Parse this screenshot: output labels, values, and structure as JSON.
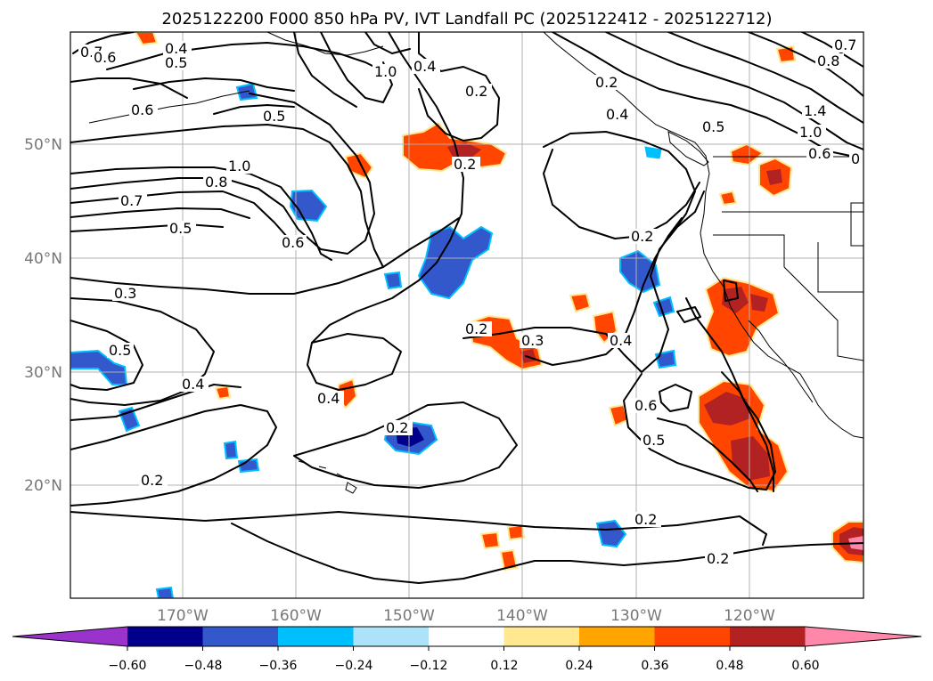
{
  "title": "2025122200 F000 850 hPa PV, IVT Landfall PC (2025122412 - 2025122712)",
  "lon_ticks": [
    "170°W",
    "160°W",
    "150°W",
    "140°W",
    "130°W",
    "120°W"
  ],
  "lat_ticks": [
    "50°N",
    "40°N",
    "30°N",
    "20°N"
  ],
  "colorbar": {
    "ticks": [
      "−0.60",
      "−0.48",
      "−0.36",
      "−0.24",
      "−0.12",
      "0.12",
      "0.24",
      "0.36",
      "0.48",
      "0.60"
    ],
    "colors": [
      "#9933cc",
      "#00008b",
      "#3358cc",
      "#00bfff",
      "#ade3f8",
      "#ffffff",
      "#ffe88f",
      "#ffa500",
      "#ff4500",
      "#b22222",
      "#ff88aa"
    ]
  },
  "contour_labels": [
    {
      "text": "0.7"
    },
    {
      "text": "0.6"
    },
    {
      "text": "0.4"
    },
    {
      "text": "0.5"
    },
    {
      "text": "0.6"
    },
    {
      "text": "0.5"
    },
    {
      "text": "1.0"
    },
    {
      "text": "0.8"
    },
    {
      "text": "0.7"
    },
    {
      "text": "0.5"
    },
    {
      "text": "0.6"
    },
    {
      "text": "1.0"
    },
    {
      "text": "0.4"
    },
    {
      "text": "0.2"
    },
    {
      "text": "0.2"
    },
    {
      "text": "0.3"
    },
    {
      "text": "0.5"
    },
    {
      "text": "0.4"
    },
    {
      "text": "0.4"
    },
    {
      "text": "0.2"
    },
    {
      "text": "0.2"
    },
    {
      "text": "0.3"
    },
    {
      "text": "0.2"
    },
    {
      "text": "0.2"
    },
    {
      "text": "0.4"
    },
    {
      "text": "0.6"
    },
    {
      "text": "0.5"
    },
    {
      "text": "0.2"
    },
    {
      "text": "0.2"
    },
    {
      "text": "0.4"
    },
    {
      "text": "0.2"
    },
    {
      "text": "0.5"
    },
    {
      "text": "1.0"
    },
    {
      "text": "1.4"
    },
    {
      "text": "0.8"
    },
    {
      "text": "0.7"
    },
    {
      "text": "0.6"
    },
    {
      "text": "0"
    }
  ]
}
